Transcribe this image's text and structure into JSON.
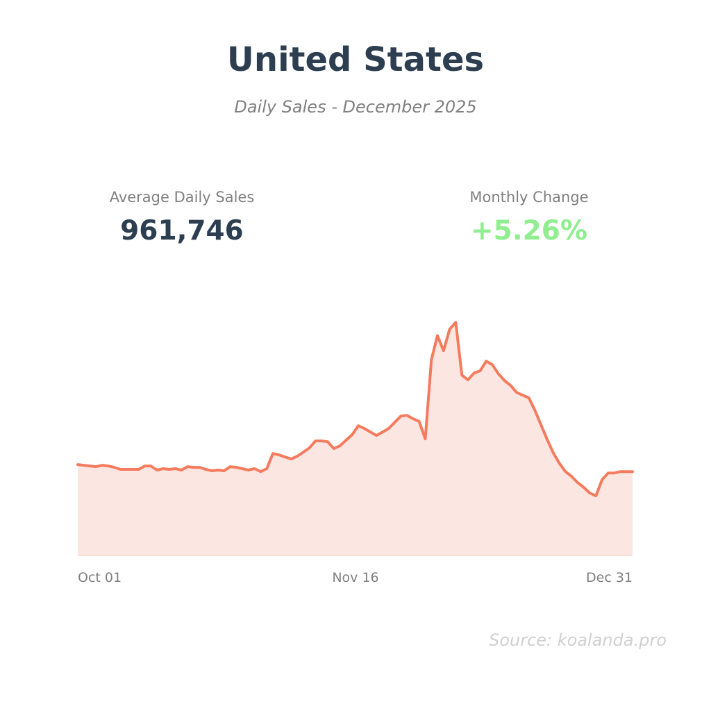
{
  "header": {
    "title": "United States",
    "subtitle": "Daily Sales - December 2025"
  },
  "kpis": [
    {
      "label": "Average Daily Sales",
      "value": "961,746"
    },
    {
      "label": "Monthly Change",
      "value": "+5.26%"
    }
  ],
  "source": "Source: koalanda.pro",
  "colors": {
    "title": "#2c3e50",
    "line": "#f47b5e",
    "fill": "#fce6e1",
    "positive": "#90ee90",
    "muted": "#808080"
  },
  "chart_data": {
    "type": "area",
    "title": "Daily Sales",
    "xlabel": "",
    "ylabel": "Daily Sales",
    "x_start": "Oct 01",
    "x_end": "Dec 31",
    "x_tick_labels": [
      "Oct 01",
      "Nov 16",
      "Dec 31"
    ],
    "x_tick_index": [
      0,
      46,
      91
    ],
    "ylim": [
      0,
      1720000
    ],
    "grid": false,
    "values": [
      664000,
      659000,
      654000,
      649000,
      659000,
      654000,
      644000,
      629000,
      629000,
      629000,
      629000,
      654000,
      654000,
      624000,
      634000,
      629000,
      634000,
      624000,
      649000,
      644000,
      644000,
      629000,
      619000,
      624000,
      619000,
      649000,
      644000,
      634000,
      624000,
      634000,
      613000,
      634000,
      745000,
      735000,
      720000,
      705000,
      725000,
      755000,
      786000,
      837000,
      837000,
      831000,
      781000,
      801000,
      842000,
      882000,
      948000,
      928000,
      902000,
      877000,
      902000,
      928000,
      973000,
      1019000,
      1024000,
      999000,
      979000,
      852000,
      1430000,
      1607000,
      1496000,
      1653000,
      1704000,
      1318000,
      1283000,
      1333000,
      1349000,
      1420000,
      1394000,
      1328000,
      1278000,
      1242000,
      1191000,
      1171000,
      1151000,
      1060000,
      953000,
      847000,
      750000,
      674000,
      613000,
      578000,
      532000,
      497000,
      456000,
      436000,
      553000,
      603000,
      603000,
      613000,
      613000,
      613000
    ]
  }
}
